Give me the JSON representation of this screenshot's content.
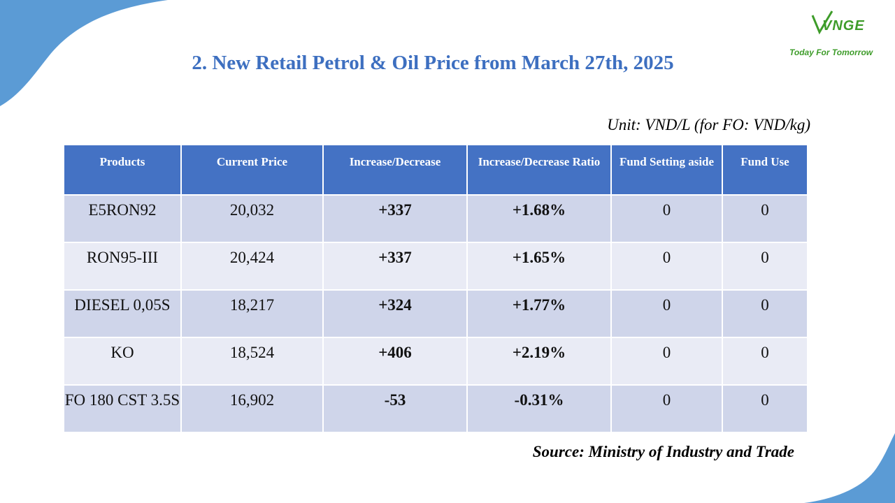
{
  "logo": {
    "mark": "VNGE",
    "tagline": "Today For Tomorrow"
  },
  "title": "2. New Retail Petrol & Oil Price from March 27th, 2025",
  "unit": "Unit: VND/L (for FO: VND/kg)",
  "table": {
    "headers": [
      "Products",
      "Current Price",
      "Increase/Decrease",
      "Increase/Decrease Ratio",
      "Fund Setting aside",
      "Fund Use"
    ],
    "rows": [
      {
        "product": "E5RON92",
        "price": "20,032",
        "change": "+337",
        "ratio": "+1.68%",
        "fund_setting": "0",
        "fund_use": "0"
      },
      {
        "product": "RON95-III",
        "price": "20,424",
        "change": "+337",
        "ratio": "+1.65%",
        "fund_setting": "0",
        "fund_use": "0"
      },
      {
        "product": "DIESEL 0,05S",
        "price": "18,217",
        "change": "+324",
        "ratio": "+1.77%",
        "fund_setting": "0",
        "fund_use": "0"
      },
      {
        "product": "KO",
        "price": "18,524",
        "change": "+406",
        "ratio": "+2.19%",
        "fund_setting": "0",
        "fund_use": "0"
      },
      {
        "product": "FO 180 CST 3.5S",
        "price": "16,902",
        "change": "-53",
        "ratio": "-0.31%",
        "fund_setting": "0",
        "fund_use": "0"
      }
    ]
  },
  "source": "Source: Ministry of Industry and Trade",
  "colors": {
    "title": "#3d6fc0",
    "header_bg": "#4472c4",
    "row_odd": "#cfd5ea",
    "row_even": "#e9ebf5",
    "increase": "#1f9f46",
    "decrease": "#e01b1b",
    "corner_shape": "#5b9bd5"
  }
}
